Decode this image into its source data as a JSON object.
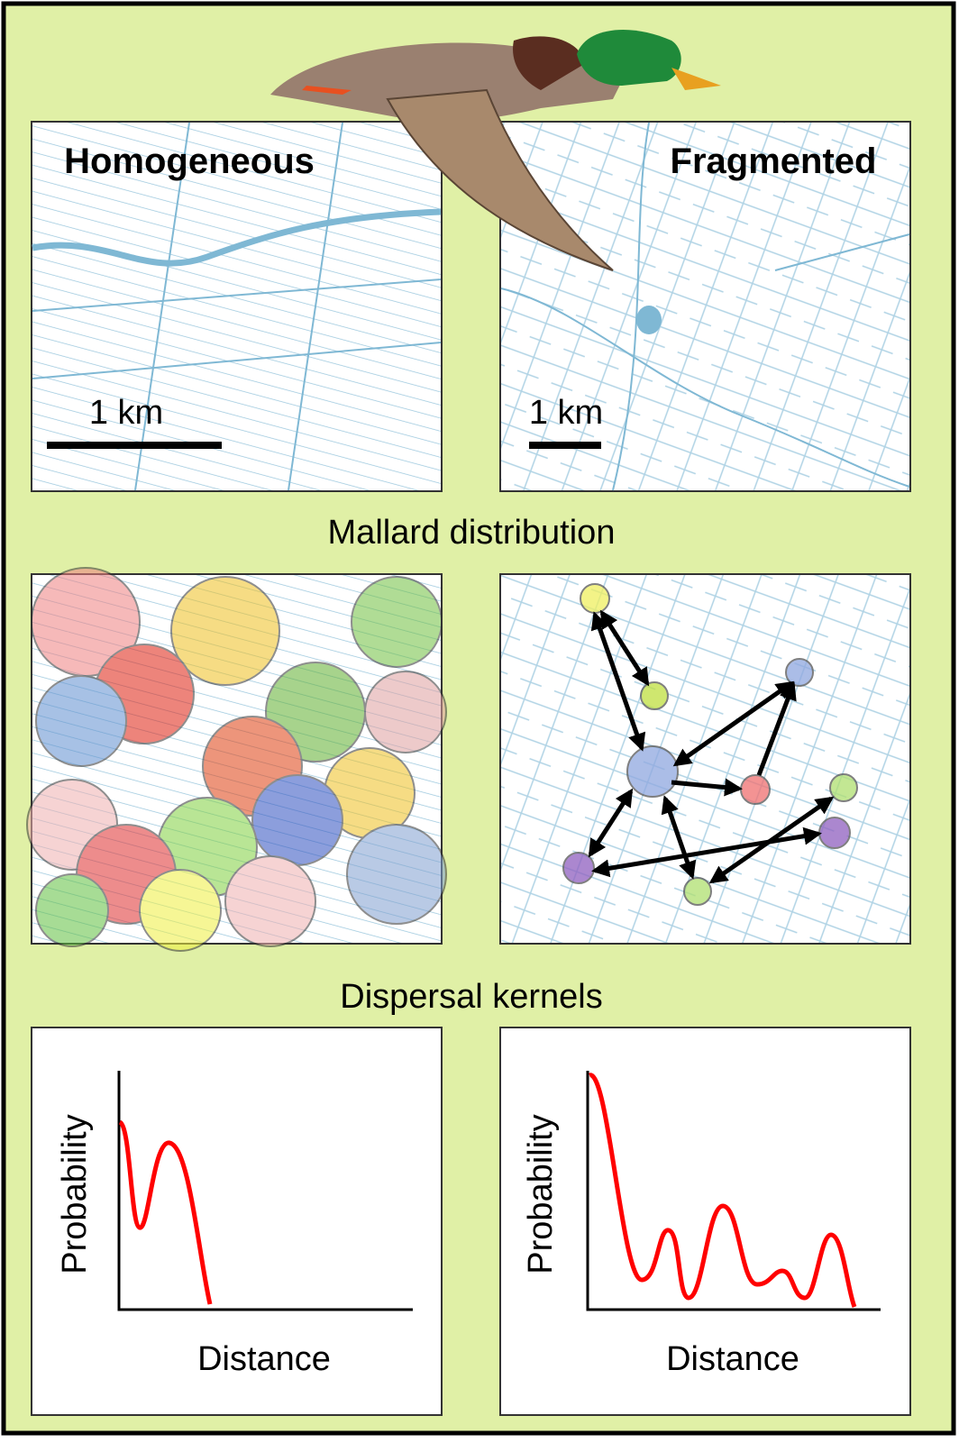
{
  "panels": {
    "homogeneous": {
      "title": "Homogeneous",
      "scale_label": "1 km"
    },
    "fragmented": {
      "title": "Fragmented",
      "scale_label": "1 km"
    }
  },
  "sections": [
    "Mallard distribution",
    "Dispersal kernels"
  ],
  "kernels": {
    "homogeneous": {
      "y_label": "Probability",
      "x_label": "Distance"
    },
    "fragmented": {
      "y_label": "Probability",
      "x_label": "Distance"
    }
  }
}
